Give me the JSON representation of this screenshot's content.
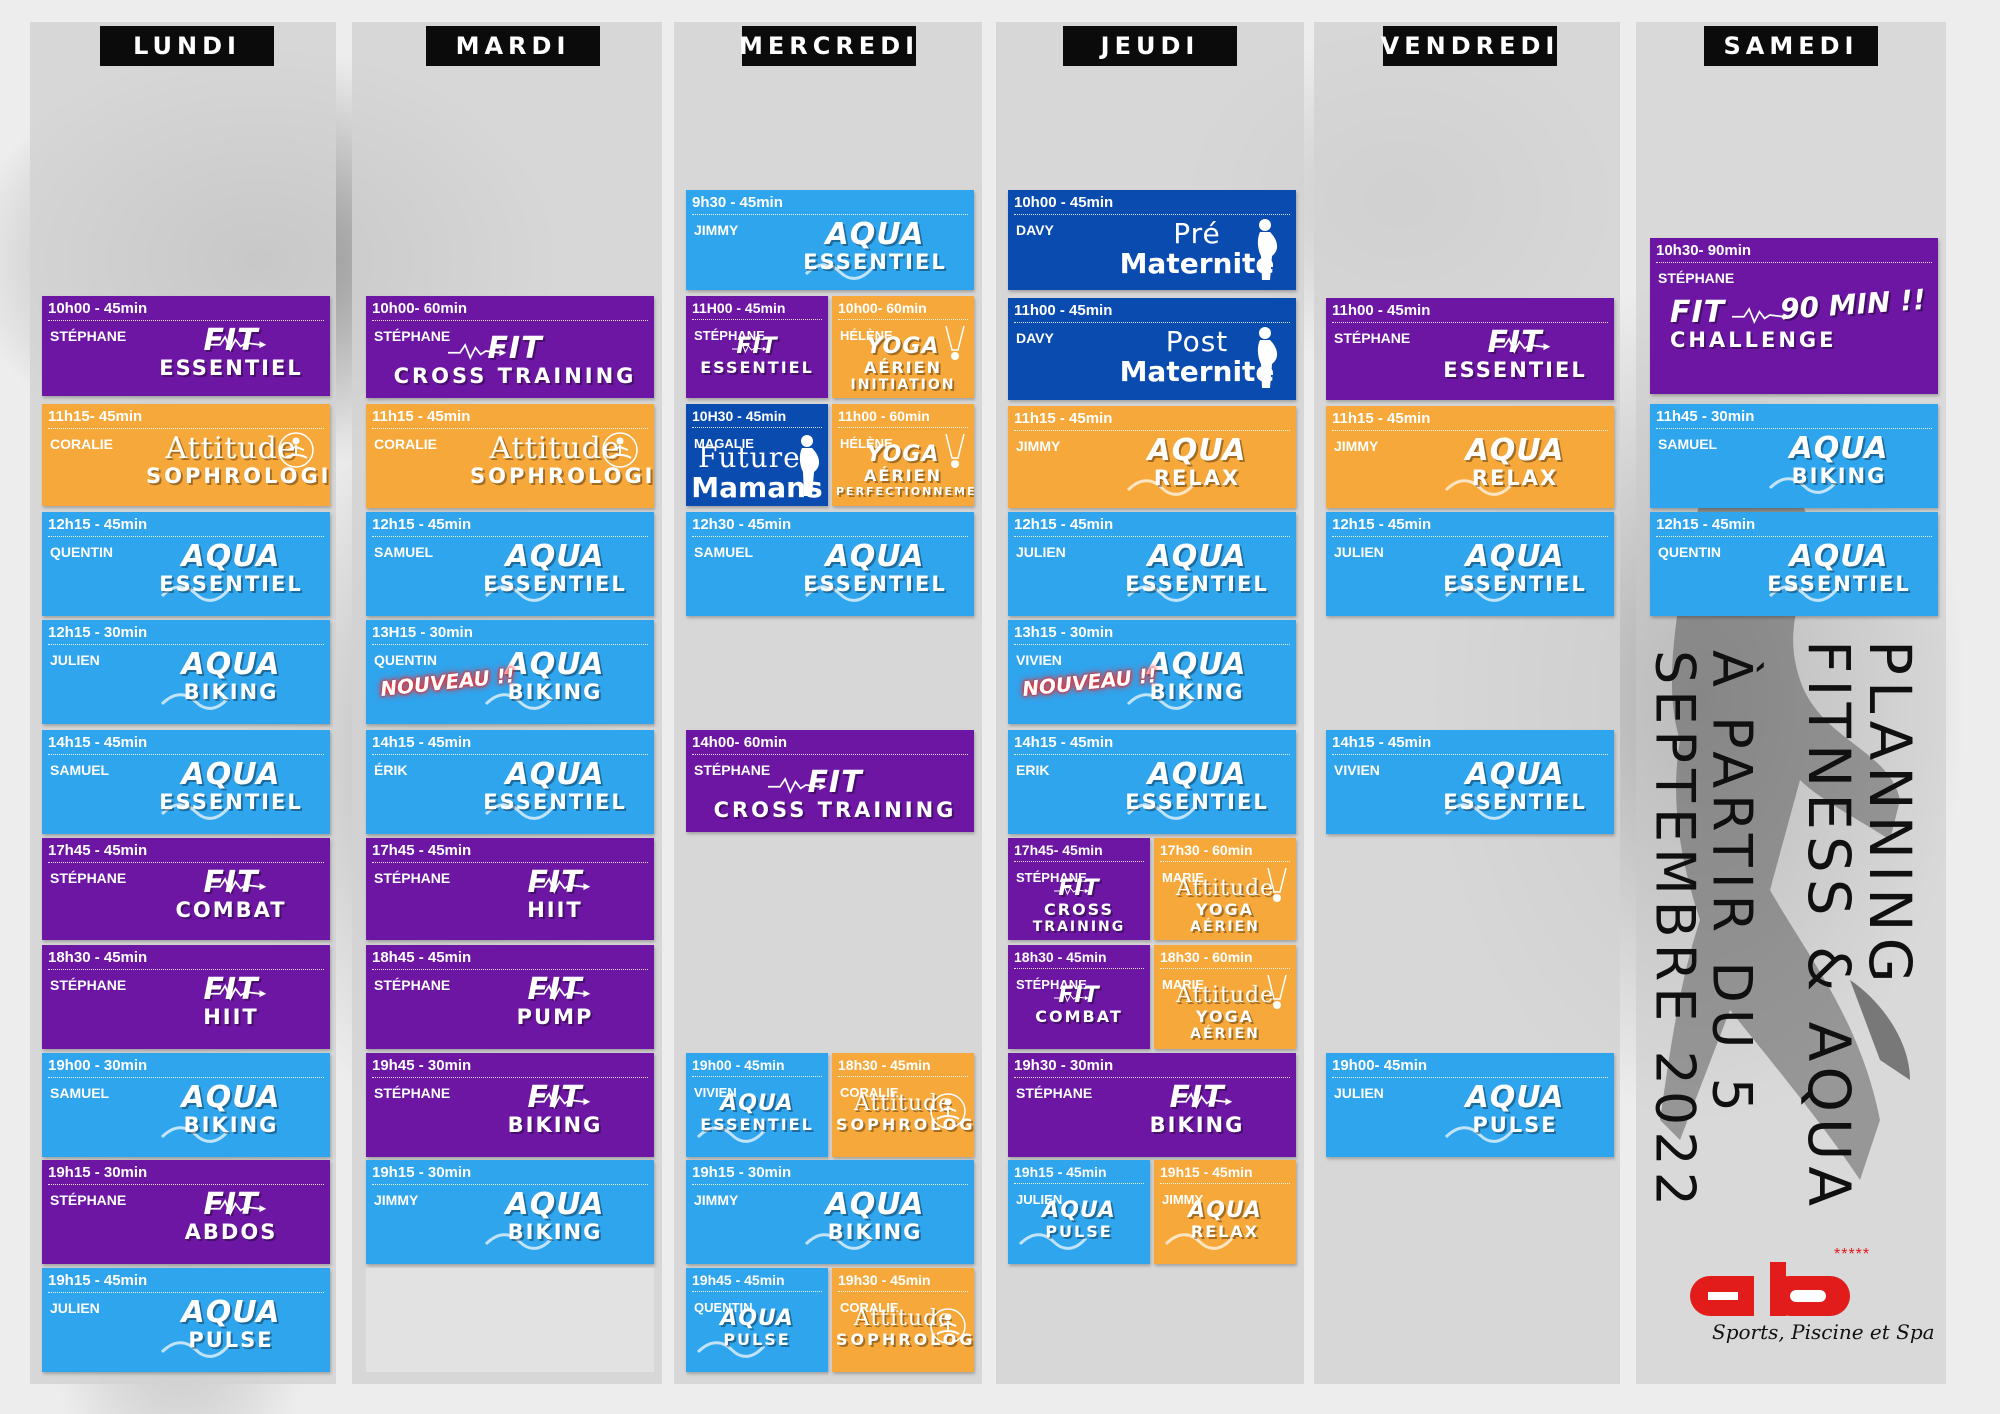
{
  "days": [
    "LUNDI",
    "MARDI",
    "MERCREDI",
    "JEUDI",
    "VENDREDI",
    "SAMEDI"
  ],
  "title": {
    "line1": "PLANNING",
    "line2": "FITNESS & AQUA",
    "line3": "À PARTIR DU 5",
    "line4": "SEPTEMBRE 2022"
  },
  "logo": {
    "mark": "ab",
    "stars": "*****",
    "subtitle": "Sports, Piscine et Spa"
  },
  "colors": {
    "purple": "#6d16a4",
    "blue": "#2fa5ee",
    "orange": "#f7a83a",
    "navy": "#0a4bb0"
  },
  "cards": [
    {
      "day": "LUNDI",
      "time": "10h00 - 45min",
      "coach": "STÉPHANE",
      "line1": "FIT",
      "line2": "ESSENTIEL",
      "color": "purple",
      "icon": "heartbeat-icon"
    },
    {
      "day": "LUNDI",
      "time": "11h15- 45min",
      "coach": "CORALIE",
      "line1": "Attitude",
      "line2": "SOPHROLOGIE",
      "color": "orange",
      "icon": "meditation-icon"
    },
    {
      "day": "LUNDI",
      "time": "12h15 - 45min",
      "coach": "QUENTIN",
      "line1": "AQUA",
      "line2": "ESSENTIEL",
      "color": "blue",
      "icon": "wave-icon"
    },
    {
      "day": "LUNDI",
      "time": "12h15 - 30min",
      "coach": "JULIEN",
      "line1": "AQUA",
      "line2": "BIKING",
      "color": "blue",
      "icon": "wave-icon"
    },
    {
      "day": "LUNDI",
      "time": "14h15 - 45min",
      "coach": "SAMUEL",
      "line1": "AQUA",
      "line2": "ESSENTIEL",
      "color": "blue",
      "icon": "wave-icon"
    },
    {
      "day": "LUNDI",
      "time": "17h45 - 45min",
      "coach": "STÉPHANE",
      "line1": "FIT",
      "line2": "COMBAT",
      "color": "purple",
      "icon": "heartbeat-icon"
    },
    {
      "day": "LUNDI",
      "time": "18h30 - 45min",
      "coach": "STÉPHANE",
      "line1": "FIT",
      "line2": "HIIT",
      "color": "purple",
      "icon": "heartbeat-icon"
    },
    {
      "day": "LUNDI",
      "time": "19h00 - 30min",
      "coach": "SAMUEL",
      "line1": "AQUA",
      "line2": "BIKING",
      "color": "blue",
      "icon": "wave-icon"
    },
    {
      "day": "LUNDI",
      "time": "19h15 - 30min",
      "coach": "STÉPHANE",
      "line1": "FIT",
      "line2": "ABDOS",
      "color": "purple",
      "icon": "heartbeat-icon"
    },
    {
      "day": "LUNDI",
      "time": "19h15 - 45min",
      "coach": "JULIEN",
      "line1": "AQUA",
      "line2": "PULSE",
      "color": "blue",
      "icon": "wave-icon"
    },
    {
      "day": "MARDI",
      "time": "10h00- 60min",
      "coach": "STÉPHANE",
      "line1": "FIT",
      "line2": "CROSS TRAINING",
      "color": "purple",
      "icon": "heartbeat-icon"
    },
    {
      "day": "MARDI",
      "time": "11h15 - 45min",
      "coach": "CORALIE",
      "line1": "Attitude",
      "line2": "SOPHROLOGIE",
      "color": "orange",
      "icon": "meditation-icon"
    },
    {
      "day": "MARDI",
      "time": "12h15 - 45min",
      "coach": "SAMUEL",
      "line1": "AQUA",
      "line2": "ESSENTIEL",
      "color": "blue",
      "icon": "wave-icon"
    },
    {
      "day": "MARDI",
      "time": "13H15 - 30min",
      "coach": "QUENTIN",
      "line1": "AQUA",
      "line2": "BIKING",
      "color": "blue",
      "icon": "wave-icon",
      "badge": "NOUVEAU !!"
    },
    {
      "day": "MARDI",
      "time": "14h15 - 45min",
      "coach": "ÉRIK",
      "line1": "AQUA",
      "line2": "ESSENTIEL",
      "color": "blue",
      "icon": "wave-icon"
    },
    {
      "day": "MARDI",
      "time": "17h45 - 45min",
      "coach": "STÉPHANE",
      "line1": "FIT",
      "line2": "HIIT",
      "color": "purple",
      "icon": "heartbeat-icon"
    },
    {
      "day": "MARDI",
      "time": "18h45 - 45min",
      "coach": "STÉPHANE",
      "line1": "FIT",
      "line2": "PUMP",
      "color": "purple",
      "icon": "heartbeat-icon"
    },
    {
      "day": "MARDI",
      "time": "19h45 - 30min",
      "coach": "STÉPHANE",
      "line1": "FIT",
      "line2": "BIKING",
      "color": "purple",
      "icon": "heartbeat-icon"
    },
    {
      "day": "MARDI",
      "time": "19h15 - 30min",
      "coach": "JIMMY",
      "line1": "AQUA",
      "line2": "BIKING",
      "color": "blue",
      "icon": "wave-icon"
    },
    {
      "day": "MERCREDI",
      "time": "9h30 - 45min",
      "coach": "JIMMY",
      "line1": "AQUA",
      "line2": "ESSENTIEL",
      "color": "blue",
      "icon": "wave-icon"
    },
    {
      "day": "MERCREDI",
      "time": "11H00 - 45min",
      "coach": "STÉPHANE",
      "line1": "FIT",
      "line2": "ESSENTIEL",
      "color": "purple",
      "icon": "heartbeat-icon"
    },
    {
      "day": "MERCREDI",
      "time": "10h00- 60min",
      "coach": "HÉLÈNE",
      "line1": "YOGA",
      "line2": "AÉRIEN",
      "line3": "INITIATION",
      "color": "orange",
      "icon": "aerial-yoga-icon"
    },
    {
      "day": "MERCREDI",
      "time": "10H30 - 45min",
      "coach": "MAGALIE",
      "line1": "Futures",
      "line2": "Mamans",
      "color": "navy",
      "icon": "pregnant-icon"
    },
    {
      "day": "MERCREDI",
      "time": "11h00 - 60min",
      "coach": "HÉLÈNE",
      "line1": "YOGA",
      "line2": "AÉRIEN",
      "line3": "PERFECTIONNEMENT",
      "color": "orange",
      "icon": "aerial-yoga-icon"
    },
    {
      "day": "MERCREDI",
      "time": "12h30 - 45min",
      "coach": "SAMUEL",
      "line1": "AQUA",
      "line2": "ESSENTIEL",
      "color": "blue",
      "icon": "wave-icon"
    },
    {
      "day": "MERCREDI",
      "time": "14h00- 60min",
      "coach": "STÉPHANE",
      "line1": "FIT",
      "line2": "CROSS TRAINING",
      "color": "purple",
      "icon": "heartbeat-icon"
    },
    {
      "day": "MERCREDI",
      "time": "19h00 - 45min",
      "coach": "VIVIEN",
      "line1": "AQUA",
      "line2": "ESSENTIEL",
      "color": "blue",
      "icon": "wave-icon"
    },
    {
      "day": "MERCREDI",
      "time": "18h30 - 45min",
      "coach": "CORALIE",
      "line1": "Attitude",
      "line2": "SOPHROLOGIE",
      "color": "orange",
      "icon": "meditation-icon"
    },
    {
      "day": "MERCREDI",
      "time": "19h15 - 30min",
      "coach": "JIMMY",
      "line1": "AQUA",
      "line2": "BIKING",
      "color": "blue",
      "icon": "wave-icon"
    },
    {
      "day": "MERCREDI",
      "time": "19h45 - 45min",
      "coach": "QUENTIN",
      "line1": "AQUA",
      "line2": "PULSE",
      "color": "blue",
      "icon": "wave-icon"
    },
    {
      "day": "MERCREDI",
      "time": "19h30 - 45min",
      "coach": "CORALIE",
      "line1": "Attitude",
      "line2": "SOPHROLOGIE",
      "color": "orange",
      "icon": "meditation-icon"
    },
    {
      "day": "JEUDI",
      "time": "10h00 - 45min",
      "coach": "DAVY",
      "line1": "Pré",
      "line2": "Maternité",
      "color": "navy",
      "icon": "pregnant-icon"
    },
    {
      "day": "JEUDI",
      "time": "11h00 - 45min",
      "coach": "DAVY",
      "line1": "Post",
      "line2": "Maternité",
      "color": "navy",
      "icon": "mother-baby-icon"
    },
    {
      "day": "JEUDI",
      "time": "11h15 - 45min",
      "coach": "JIMMY",
      "line1": "AQUA",
      "line2": "RELAX",
      "color": "orange",
      "icon": "wave-icon"
    },
    {
      "day": "JEUDI",
      "time": "12h15 - 45min",
      "coach": "JULIEN",
      "line1": "AQUA",
      "line2": "ESSENTIEL",
      "color": "blue",
      "icon": "wave-icon"
    },
    {
      "day": "JEUDI",
      "time": "13h15 - 30min",
      "coach": "VIVIEN",
      "line1": "AQUA",
      "line2": "BIKING",
      "color": "blue",
      "icon": "wave-icon",
      "badge": "NOUVEAU !!"
    },
    {
      "day": "JEUDI",
      "time": "14h15 - 45min",
      "coach": "ERIK",
      "line1": "AQUA",
      "line2": "ESSENTIEL",
      "color": "blue",
      "icon": "wave-icon"
    },
    {
      "day": "JEUDI",
      "time": "17h45- 45min",
      "coach": "STÉPHANE",
      "line1": "FIT",
      "line2": "CROSS",
      "line3": "TRAINING",
      "color": "purple",
      "icon": "heartbeat-icon"
    },
    {
      "day": "JEUDI",
      "time": "17h30 - 60min",
      "coach": "MARIE",
      "line1": "Attitude",
      "line2": "YOGA",
      "line3": "AÉRIEN",
      "color": "orange",
      "icon": "aerial-yoga-icon"
    },
    {
      "day": "JEUDI",
      "time": "18h30 - 45min",
      "coach": "STÉPHANE",
      "line1": "FIT",
      "line2": "COMBAT",
      "color": "purple",
      "icon": "heartbeat-icon"
    },
    {
      "day": "JEUDI",
      "time": "18h30 - 60min",
      "coach": "MARIE",
      "line1": "Attitude",
      "line2": "YOGA",
      "line3": "AÉRIEN",
      "color": "orange",
      "icon": "aerial-yoga-icon"
    },
    {
      "day": "JEUDI",
      "time": "19h30 - 30min",
      "coach": "STÉPHANE",
      "line1": "FIT",
      "line2": "BIKING",
      "color": "purple",
      "icon": "heartbeat-icon"
    },
    {
      "day": "JEUDI",
      "time": "19h15 - 45min",
      "coach": "JULIEN",
      "line1": "AQUA",
      "line2": "PULSE",
      "color": "blue",
      "icon": "wave-icon"
    },
    {
      "day": "JEUDI",
      "time": "19h15 - 45min",
      "coach": "JIMMY",
      "line1": "AQUA",
      "line2": "RELAX",
      "color": "orange",
      "icon": "wave-icon"
    },
    {
      "day": "VENDREDI",
      "time": "11h00 - 45min",
      "coach": "STÉPHANE",
      "line1": "FIT",
      "line2": "ESSENTIEL",
      "color": "purple",
      "icon": "heartbeat-icon"
    },
    {
      "day": "VENDREDI",
      "time": "11h15 - 45min",
      "coach": "JIMMY",
      "line1": "AQUA",
      "line2": "RELAX",
      "color": "orange",
      "icon": "wave-icon"
    },
    {
      "day": "VENDREDI",
      "time": "12h15 - 45min",
      "coach": "JULIEN",
      "line1": "AQUA",
      "line2": "ESSENTIEL",
      "color": "blue",
      "icon": "wave-icon"
    },
    {
      "day": "VENDREDI",
      "time": "14h15 - 45min",
      "coach": "VIVIEN",
      "line1": "AQUA",
      "line2": "ESSENTIEL",
      "color": "blue",
      "icon": "wave-icon"
    },
    {
      "day": "VENDREDI",
      "time": "19h00- 45min",
      "coach": "JULIEN",
      "line1": "AQUA",
      "line2": "PULSE",
      "color": "blue",
      "icon": "wave-icon"
    },
    {
      "day": "SAMEDI",
      "time": "10h30- 90min",
      "coach": "STÉPHANE",
      "line1": "FIT",
      "line2": "CHALLENGE",
      "color": "purple",
      "icon": "heartbeat-icon",
      "badge": "90 MIN !!"
    },
    {
      "day": "SAMEDI",
      "time": "11h45 - 30min",
      "coach": "SAMUEL",
      "line1": "AQUA",
      "line2": "BIKING",
      "color": "blue",
      "icon": "wave-icon"
    },
    {
      "day": "SAMEDI",
      "time": "12h15 - 45min",
      "coach": "QUENTIN",
      "line1": "AQUA",
      "line2": "ESSENTIEL",
      "color": "blue",
      "icon": "wave-icon"
    }
  ]
}
